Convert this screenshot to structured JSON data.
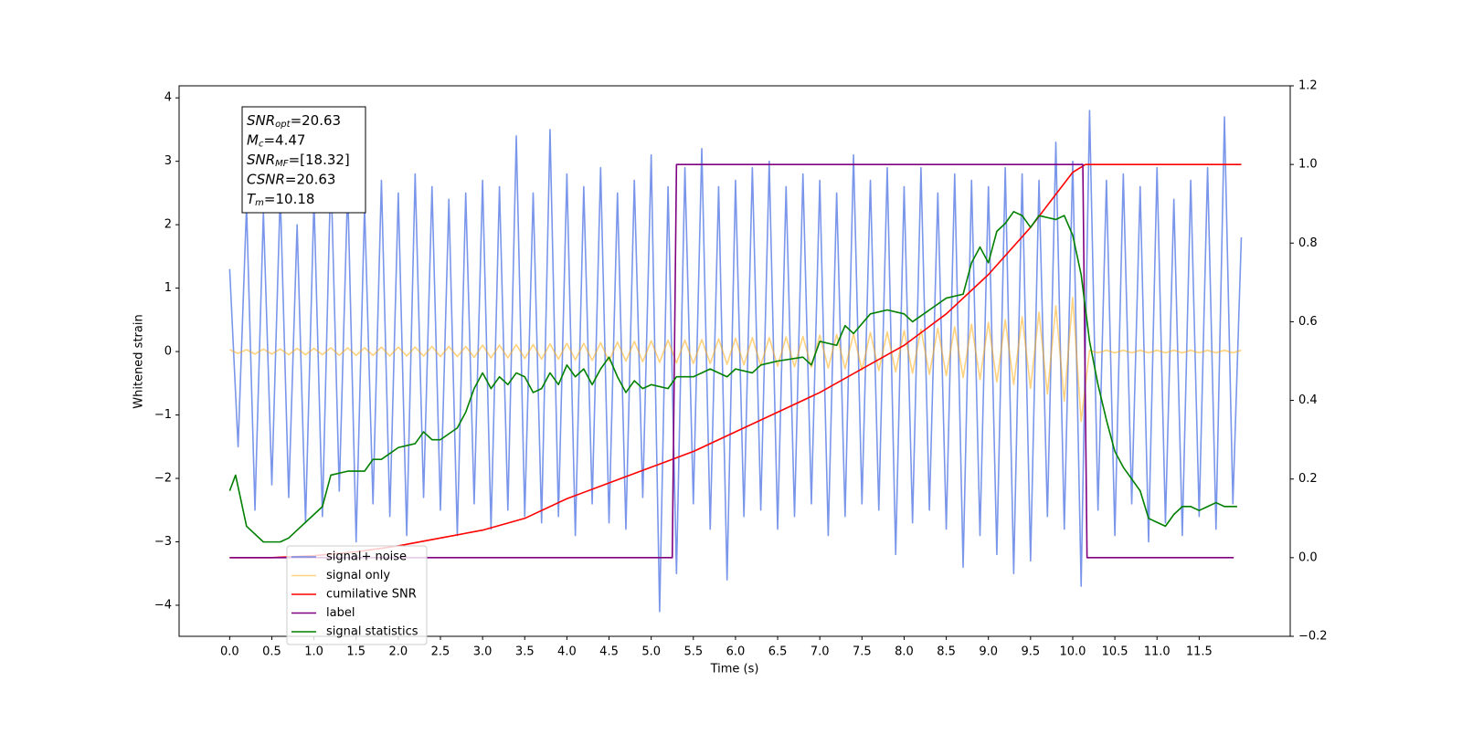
{
  "chart_data": {
    "type": "line",
    "xlabel": "Time (s)",
    "ylabel": "Whitened strain",
    "xlim": [
      -0.6,
      12.58
    ],
    "ylim": [
      -4.49,
      4.19
    ],
    "y2lim": [
      -0.2,
      1.2
    ],
    "xticks": [
      {
        "value": 0,
        "label": "0.0"
      },
      0.5,
      {
        "value": 1,
        "label": "1.0"
      },
      1.5,
      {
        "value": 2,
        "label": "2.0"
      },
      2.5,
      {
        "value": 3,
        "label": "3.0"
      },
      3.5,
      {
        "value": 4,
        "label": "4.0"
      },
      4.5,
      {
        "value": 5,
        "label": "5.0"
      },
      5.5,
      {
        "value": 6,
        "label": "6.0"
      },
      6.5,
      {
        "value": 7,
        "label": "7.0"
      },
      7.5,
      {
        "value": 8,
        "label": "8.0"
      },
      8.5,
      {
        "value": 9,
        "label": "9.0"
      },
      9.5,
      {
        "value": 10,
        "label": "10.0"
      },
      10.5,
      {
        "value": 11,
        "label": "11.0"
      },
      11.5
    ],
    "yticks": [
      {
        "value": -4,
        "label": "−4"
      },
      {
        "value": -3,
        "label": "−3"
      },
      {
        "value": -2,
        "label": "−2"
      },
      {
        "value": -1,
        "label": "−1"
      },
      0,
      1,
      2,
      3,
      4
    ],
    "y2ticks": [
      {
        "value": -0.2,
        "label": "−0.2"
      },
      {
        "value": 0,
        "label": "0.0"
      },
      0.2,
      0.4,
      0.6,
      0.8,
      {
        "value": 1,
        "label": "1.0"
      },
      1.2
    ],
    "legend": "lower left",
    "annotation": [
      {
        "symbol": "SNR",
        "sub": "opt",
        "text": "=20.63"
      },
      {
        "symbol": "M",
        "sub": "c",
        "text": "=4.47"
      },
      {
        "symbol": "SNR",
        "sub": "MF",
        "text": "=[18.32]"
      },
      {
        "symbol": "CSNR",
        "text": "=20.63"
      },
      {
        "symbol": "T",
        "sub": "m",
        "text": "=10.18"
      }
    ],
    "series": [
      {
        "name": "signal+ noise",
        "color": "#4169e1",
        "x": [
          0,
          0.1,
          0.2,
          0.3,
          0.4,
          0.5,
          0.6,
          0.7,
          0.8,
          0.9,
          1,
          1.1,
          1.2,
          1.3,
          1.4,
          1.5,
          1.6,
          1.7,
          1.8,
          1.9,
          2,
          2.1,
          2.2,
          2.3,
          2.4,
          2.5,
          2.6,
          2.7,
          2.8,
          2.9,
          3,
          3.1,
          3.2,
          3.3,
          3.4,
          3.5,
          3.6,
          3.7,
          3.8,
          3.9,
          4,
          4.1,
          4.2,
          4.3,
          4.4,
          4.5,
          4.6,
          4.7,
          4.8,
          4.9,
          5,
          5.1,
          5.2,
          5.3,
          5.4,
          5.5,
          5.6,
          5.7,
          5.8,
          5.9,
          6,
          6.1,
          6.2,
          6.3,
          6.4,
          6.5,
          6.6,
          6.7,
          6.8,
          6.9,
          7,
          7.1,
          7.2,
          7.3,
          7.4,
          7.5,
          7.6,
          7.7,
          7.8,
          7.9,
          8,
          8.1,
          8.2,
          8.3,
          8.4,
          8.5,
          8.6,
          8.7,
          8.8,
          8.9,
          9,
          9.1,
          9.2,
          9.3,
          9.4,
          9.5,
          9.6,
          9.7,
          9.8,
          9.9,
          10,
          10.1,
          10.2,
          10.3,
          10.4,
          10.5,
          10.6,
          10.7,
          10.8,
          10.9,
          11,
          11.1,
          11.2,
          11.3,
          11.4,
          11.5,
          11.6,
          11.7,
          11.8,
          11.9,
          12
        ],
        "values": [
          1.3,
          -1.5,
          2.3,
          -2.5,
          2.2,
          -2.1,
          2.5,
          -2.3,
          2.0,
          -2.7,
          2.4,
          -2.6,
          2.9,
          -2.2,
          2.6,
          -3.0,
          2.3,
          -2.4,
          2.7,
          -2.6,
          2.5,
          -2.9,
          2.8,
          -2.3,
          2.6,
          -2.5,
          2.4,
          -2.9,
          2.5,
          -2.4,
          2.7,
          -2.8,
          2.6,
          -2.5,
          3.4,
          -2.6,
          2.5,
          -2.7,
          3.5,
          -2.6,
          2.8,
          -2.9,
          2.6,
          -2.4,
          2.9,
          -2.7,
          2.5,
          -2.8,
          2.7,
          -2.3,
          3.1,
          -4.1,
          2.6,
          -3.5,
          2.9,
          -2.4,
          3.2,
          -2.8,
          2.6,
          -3.6,
          2.7,
          -2.6,
          2.9,
          -2.5,
          3.0,
          -2.8,
          2.6,
          -2.6,
          2.8,
          -2.4,
          2.7,
          -2.9,
          2.5,
          -2.6,
          3.1,
          -2.4,
          2.7,
          -2.5,
          2.9,
          -3.2,
          2.6,
          -2.7,
          2.9,
          -2.5,
          2.5,
          -2.8,
          2.8,
          -3.4,
          2.7,
          -2.9,
          2.6,
          -3.2,
          2.9,
          -3.5,
          2.8,
          -3.3,
          2.7,
          -2.6,
          3.3,
          -2.8,
          3.0,
          -3.7,
          3.8,
          -2.5,
          2.7,
          -2.9,
          2.8,
          -2.4,
          2.6,
          -3.0,
          2.9,
          -2.7,
          2.4,
          -2.9,
          2.7,
          -2.6,
          2.9,
          -2.8,
          3.7,
          -2.4,
          1.8
        ]
      },
      {
        "name": "signal only",
        "color": "#ffa500",
        "x": [
          0,
          0.1,
          0.2,
          0.3,
          0.4,
          0.5,
          0.6,
          0.7,
          0.8,
          0.9,
          1,
          1.1,
          1.2,
          1.3,
          1.4,
          1.5,
          1.6,
          1.7,
          1.8,
          1.9,
          2,
          2.1,
          2.2,
          2.3,
          2.4,
          2.5,
          2.6,
          2.7,
          2.8,
          2.9,
          3,
          3.1,
          3.2,
          3.3,
          3.4,
          3.5,
          3.6,
          3.7,
          3.8,
          3.9,
          4,
          4.1,
          4.2,
          4.3,
          4.4,
          4.5,
          4.6,
          4.7,
          4.8,
          4.9,
          5,
          5.1,
          5.2,
          5.3,
          5.4,
          5.5,
          5.6,
          5.7,
          5.8,
          5.9,
          6,
          6.1,
          6.2,
          6.3,
          6.4,
          6.5,
          6.6,
          6.7,
          6.8,
          6.9,
          7,
          7.1,
          7.2,
          7.3,
          7.4,
          7.5,
          7.6,
          7.7,
          7.8,
          7.9,
          8,
          8.1,
          8.2,
          8.3,
          8.4,
          8.5,
          8.6,
          8.7,
          8.8,
          8.9,
          9,
          9.1,
          9.2,
          9.3,
          9.4,
          9.5,
          9.6,
          9.7,
          9.8,
          9.9,
          10,
          10.1,
          10.2,
          10.3,
          10.4,
          10.5,
          10.6,
          10.7,
          10.8,
          10.9,
          11,
          11.1,
          11.2,
          11.3,
          11.4,
          11.5,
          11.6,
          11.7,
          11.8,
          11.9,
          12
        ],
        "values": [
          0.03,
          -0.03,
          0.03,
          -0.04,
          0.04,
          -0.04,
          0.04,
          -0.05,
          0.05,
          -0.05,
          0.05,
          -0.05,
          0.06,
          -0.06,
          0.06,
          -0.06,
          0.06,
          -0.06,
          0.07,
          -0.07,
          0.07,
          -0.07,
          0.07,
          -0.07,
          0.08,
          -0.08,
          0.08,
          -0.08,
          0.08,
          -0.09,
          0.1,
          -0.1,
          0.1,
          -0.1,
          0.11,
          -0.11,
          0.11,
          -0.12,
          0.12,
          -0.12,
          0.13,
          -0.13,
          0.13,
          -0.14,
          0.14,
          -0.15,
          0.15,
          -0.15,
          0.16,
          -0.16,
          0.17,
          -0.17,
          0.18,
          -0.18,
          0.18,
          -0.19,
          0.19,
          -0.19,
          0.2,
          -0.2,
          0.21,
          -0.21,
          0.22,
          -0.22,
          0.22,
          -0.23,
          0.23,
          -0.24,
          0.24,
          -0.25,
          0.26,
          -0.26,
          0.27,
          -0.27,
          0.28,
          -0.29,
          0.3,
          -0.3,
          0.31,
          -0.32,
          0.33,
          -0.34,
          0.35,
          -0.36,
          0.37,
          -0.38,
          0.39,
          -0.41,
          0.43,
          -0.44,
          0.46,
          -0.48,
          0.5,
          -0.52,
          0.55,
          -0.58,
          0.62,
          -0.67,
          0.72,
          -0.78,
          0.85,
          -1.1,
          0.02,
          -0.02,
          0.02,
          -0.02,
          0.02,
          -0.02,
          0.02,
          -0.02,
          0.02,
          -0.02,
          0.02,
          -0.02,
          0.02,
          -0.02,
          0.02,
          -0.02,
          0.02,
          -0.02,
          0.02
        ]
      },
      {
        "name": "cumilative SNR",
        "color": "#ff0000",
        "axis": "y2",
        "x": [
          0,
          0.5,
          1,
          1.5,
          2,
          2.5,
          3,
          3.5,
          4,
          4.5,
          5,
          5.5,
          6,
          6.5,
          7,
          7.5,
          8,
          8.5,
          9,
          9.5,
          10,
          10.15,
          12
        ],
        "values": [
          0,
          0,
          0.005,
          0.015,
          0.03,
          0.05,
          0.07,
          0.1,
          0.15,
          0.19,
          0.23,
          0.27,
          0.32,
          0.37,
          0.42,
          0.48,
          0.54,
          0.62,
          0.72,
          0.84,
          0.98,
          1,
          1
        ]
      },
      {
        "name": "label",
        "color": "#800080",
        "axis": "y2",
        "x": [
          0,
          5.25,
          5.3,
          10.12,
          10.17,
          11.91
        ],
        "values": [
          0,
          0,
          1,
          1,
          0,
          0
        ]
      },
      {
        "name": "signal statistics",
        "color": "#008000",
        "axis": "y2",
        "x": [
          0,
          0.07,
          0.2,
          0.4,
          0.5,
          0.6,
          0.7,
          0.8,
          1,
          1.1,
          1.2,
          1.4,
          1.6,
          1.7,
          1.8,
          2,
          2.2,
          2.3,
          2.4,
          2.5,
          2.7,
          2.8,
          2.9,
          3,
          3.1,
          3.2,
          3.3,
          3.4,
          3.5,
          3.6,
          3.7,
          3.8,
          3.9,
          4,
          4.1,
          4.2,
          4.3,
          4.4,
          4.5,
          4.6,
          4.7,
          4.8,
          4.9,
          5,
          5.2,
          5.3,
          5.5,
          5.7,
          5.9,
          6,
          6.2,
          6.3,
          6.5,
          6.8,
          6.9,
          7,
          7.2,
          7.3,
          7.4,
          7.6,
          7.8,
          8,
          8.1,
          8.3,
          8.5,
          8.7,
          8.8,
          8.9,
          9,
          9.1,
          9.2,
          9.3,
          9.4,
          9.5,
          9.6,
          9.8,
          9.9,
          10,
          10.1,
          10.2,
          10.3,
          10.4,
          10.5,
          10.6,
          10.8,
          10.9,
          11,
          11.1,
          11.2,
          11.3,
          11.4,
          11.5,
          11.6,
          11.7,
          11.8,
          11.9,
          11.95
        ],
        "values": [
          0.17,
          0.21,
          0.08,
          0.04,
          0.04,
          0.04,
          0.05,
          0.07,
          0.11,
          0.13,
          0.21,
          0.22,
          0.22,
          0.25,
          0.25,
          0.28,
          0.29,
          0.32,
          0.3,
          0.3,
          0.33,
          0.37,
          0.43,
          0.47,
          0.43,
          0.46,
          0.44,
          0.47,
          0.46,
          0.42,
          0.43,
          0.47,
          0.44,
          0.49,
          0.46,
          0.48,
          0.44,
          0.48,
          0.51,
          0.46,
          0.42,
          0.45,
          0.43,
          0.44,
          0.43,
          0.46,
          0.46,
          0.48,
          0.46,
          0.48,
          0.47,
          0.49,
          0.5,
          0.51,
          0.49,
          0.55,
          0.54,
          0.59,
          0.57,
          0.62,
          0.63,
          0.62,
          0.6,
          0.63,
          0.66,
          0.67,
          0.75,
          0.79,
          0.75,
          0.83,
          0.85,
          0.88,
          0.87,
          0.84,
          0.87,
          0.86,
          0.87,
          0.82,
          0.72,
          0.55,
          0.44,
          0.35,
          0.27,
          0.23,
          0.17,
          0.1,
          0.09,
          0.08,
          0.11,
          0.13,
          0.13,
          0.12,
          0.13,
          0.14,
          0.13,
          0.13,
          0.13
        ]
      }
    ]
  }
}
